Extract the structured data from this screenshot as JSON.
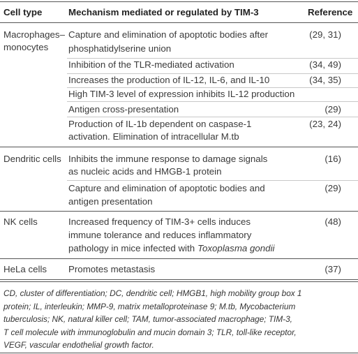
{
  "table": {
    "headers": [
      "Cell type",
      "Mechanism mediated or regulated by TIM-3",
      "Reference"
    ],
    "groups": [
      {
        "cell_type": [
          "Macrophages–",
          "monocytes"
        ],
        "rows": [
          {
            "mechanism": [
              "Capture and elimination of apoptotic bodies after",
              "phosphatidylserine union"
            ],
            "reference": "(29, 31)"
          },
          {
            "mechanism": [
              "Inhibition of the TLR-mediated activation"
            ],
            "reference": "(34, 49)"
          },
          {
            "mechanism": [
              "Increases the production of IL-12, IL-6, and IL-10"
            ],
            "reference": "(34, 35)"
          },
          {
            "mechanism": [
              "High TIM-3 level of expression inhibits IL-12 production"
            ]
          },
          {
            "mechanism": [
              "Antigen cross-presentation"
            ],
            "reference": "(29)"
          },
          {
            "mechanism": [
              "Production of IL-1b dependent on caspase-1",
              "activation. Elimination of intracellular M.tb"
            ],
            "reference": "(23, 24)"
          }
        ]
      },
      {
        "cell_type": [
          "Dendritic cells"
        ],
        "rows": [
          {
            "mechanism": [
              "Inhibits the immune response to damage signals",
              "as nucleic acids and HMGB-1 protein"
            ],
            "reference": "(16)"
          },
          {
            "mechanism": [
              "Capture and elimination of apoptotic bodies and",
              "antigen presentation"
            ],
            "reference": "(29)"
          }
        ]
      },
      {
        "cell_type": [
          "NK cells"
        ],
        "rows": [
          {
            "mechanism": [
              "Increased frequency of TIM-3+ cells induces",
              "immune tolerance and reduces inflammatory",
              "pathology in mice infected with"
            ],
            "mechanism_italic": "Toxoplasma gondii",
            "reference": "(48)"
          }
        ]
      },
      {
        "cell_type": [
          "HeLa cells"
        ],
        "rows": [
          {
            "mechanism": [
              "Promotes metastasis"
            ],
            "reference": "(37)"
          }
        ]
      }
    ]
  },
  "footnote": [
    "CD, cluster of differentiation; DC, dendritic cell; HMGB1, high mobility group box 1",
    "protein; IL, interleukin; MMP-9, matrix metalloproteinase 9; M.tb, Mycobacterium",
    "tuberculosis; NK, natural killer cell; TAM, tumor-associated macrophage; TIM-3,",
    "T cell molecule with immunoglobulin and mucin domain 3; TLR, toll-like receptor,",
    "VEGF, vascular endothelial growth factor."
  ]
}
